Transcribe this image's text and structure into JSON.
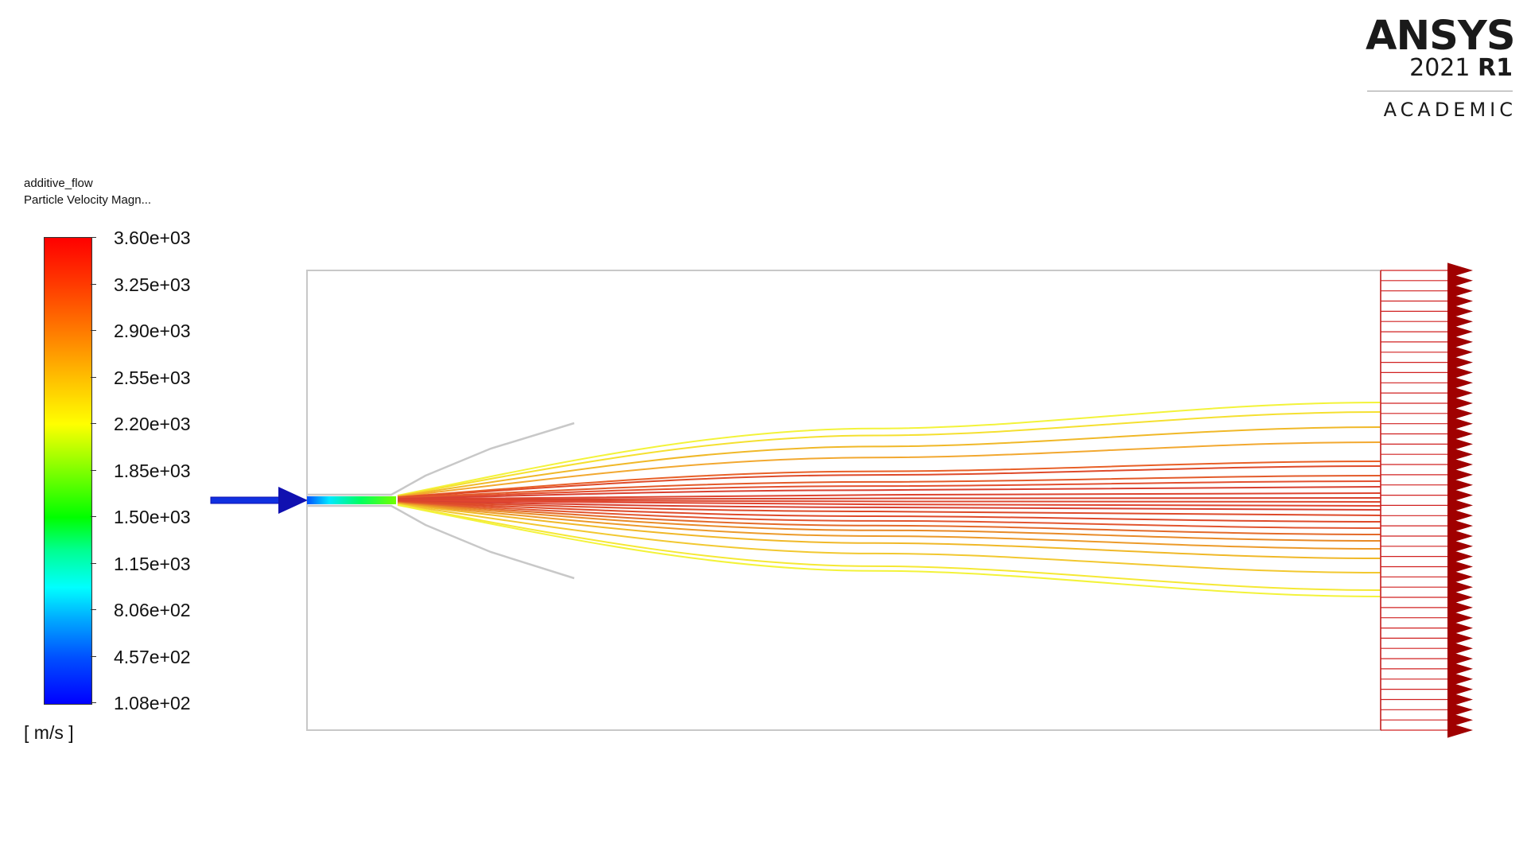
{
  "branding": {
    "brand": "ANSYS",
    "version_year": "2021",
    "version_release": "R1",
    "edition": "ACADEMIC"
  },
  "legend": {
    "case_name": "additive_flow",
    "variable": "Particle Velocity Magn...",
    "units": "[ m/s ]",
    "ticks": [
      "3.60e+03",
      "3.25e+03",
      "2.90e+03",
      "2.55e+03",
      "2.20e+03",
      "1.85e+03",
      "1.50e+03",
      "1.15e+03",
      "8.06e+02",
      "4.57e+02",
      "1.08e+02"
    ],
    "range": [
      108,
      3600
    ],
    "colormap": [
      "#0000ff",
      "#00ffff",
      "#00ff00",
      "#ffff00",
      "#ff0000"
    ]
  },
  "scene": {
    "colors": {
      "domain_outline": "#c8c8c8",
      "nozzle": "#c8c8c8",
      "inlet_arrow": "#1010b0",
      "outlet_arrows": "#a00000"
    }
  }
}
